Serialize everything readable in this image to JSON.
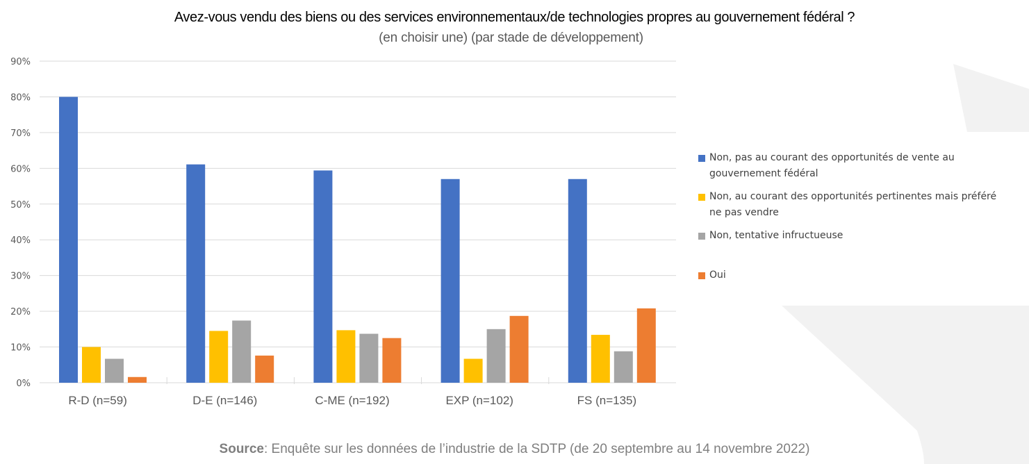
{
  "title": "Avez-vous vendu des biens ou des services environnementaux/de technologies propres au gouvernement fédéral ?",
  "subtitle": "(en choisir une) (par stade de développement)",
  "source_label": "Source",
  "source_text": ": Enquête sur les données de l’industrie de la SDTP (de 20 septembre au 14 novembre 2022)",
  "chart_data": {
    "type": "bar",
    "title": "Avez-vous vendu des biens ou des services environnementaux/de technologies propres au gouvernement fédéral ?",
    "subtitle": "(en choisir une) (par stade de développement)",
    "xlabel": "",
    "ylabel": "",
    "ylim": [
      0,
      90
    ],
    "yticks": [
      0,
      10,
      20,
      30,
      40,
      50,
      60,
      70,
      80,
      90
    ],
    "ytick_labels": [
      "0%",
      "10%",
      "20%",
      "30%",
      "40%",
      "50%",
      "60%",
      "70%",
      "80%",
      "90%"
    ],
    "grid": true,
    "legend_position": "right",
    "categories": [
      "R-D (n=59)",
      "D-E (n=146)",
      "C-ME (n=192)",
      "EXP (n=102)",
      "FS (n=135)"
    ],
    "series": [
      {
        "name": "Non, pas au courant des opportunités de vente au gouvernement fédéral",
        "color": "#4472c4",
        "values": [
          80.0,
          61.1,
          59.4,
          57.0,
          57.0
        ]
      },
      {
        "name": "Non, au courant des opportunités pertinentes mais préféré ne pas vendre",
        "color": "#ffc000",
        "values": [
          10.0,
          14.5,
          14.7,
          6.7,
          13.4
        ]
      },
      {
        "name": "Non, tentative infructueuse",
        "color": "#a5a5a5",
        "values": [
          6.7,
          17.4,
          13.7,
          15.0,
          8.8
        ]
      },
      {
        "name": "Oui",
        "color": "#ed7d31",
        "values": [
          1.6,
          7.6,
          12.5,
          18.7,
          20.8
        ]
      }
    ]
  },
  "legend": [
    {
      "lines": [
        "Non, pas au courant des opportunités de vente au",
        "gouvernement fédéral"
      ],
      "color": "#4472c4"
    },
    {
      "lines": [
        "Non, au courant des opportunités pertinentes mais préféré",
        "ne pas vendre"
      ],
      "color": "#ffc000"
    },
    {
      "lines": [
        "Non, tentative infructueuse"
      ],
      "color": "#a5a5a5"
    },
    {
      "lines": [
        "Oui"
      ],
      "color": "#ed7d31"
    }
  ]
}
